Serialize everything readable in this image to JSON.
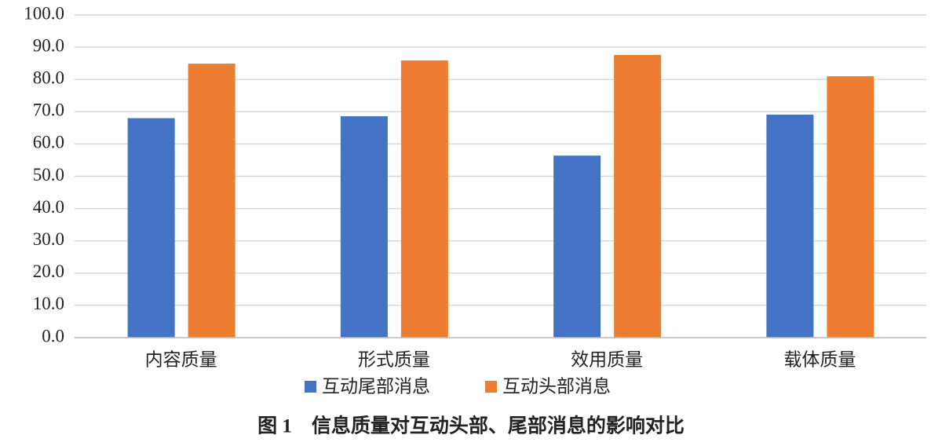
{
  "chart_data": {
    "type": "bar",
    "title": "图 1　信息质量对互动头部、尾部消息的影响对比",
    "categories": [
      "内容质量",
      "形式质量",
      "效用质量",
      "载体质量"
    ],
    "series": [
      {
        "name": "互动尾部消息",
        "color": "#4472c4",
        "values": [
          68.0,
          68.6,
          56.4,
          69.1
        ]
      },
      {
        "name": "互动头部消息",
        "color": "#ed7d31",
        "values": [
          84.9,
          85.9,
          87.6,
          81.0
        ]
      }
    ],
    "ylim": [
      0,
      100
    ],
    "yticks": [
      {
        "value": 0,
        "label": "0.0"
      },
      {
        "value": 10,
        "label": "10.0"
      },
      {
        "value": 20,
        "label": "20.0"
      },
      {
        "value": 30,
        "label": "30.0"
      },
      {
        "value": 40,
        "label": "40.0"
      },
      {
        "value": 50,
        "label": "50.0"
      },
      {
        "value": 60,
        "label": "60.0"
      },
      {
        "value": 70,
        "label": "70.0"
      },
      {
        "value": 80,
        "label": "80.0"
      },
      {
        "value": 90,
        "label": "90.0"
      },
      {
        "value": 100,
        "label": "100.0"
      }
    ],
    "grid": true,
    "legend": "bottom"
  }
}
